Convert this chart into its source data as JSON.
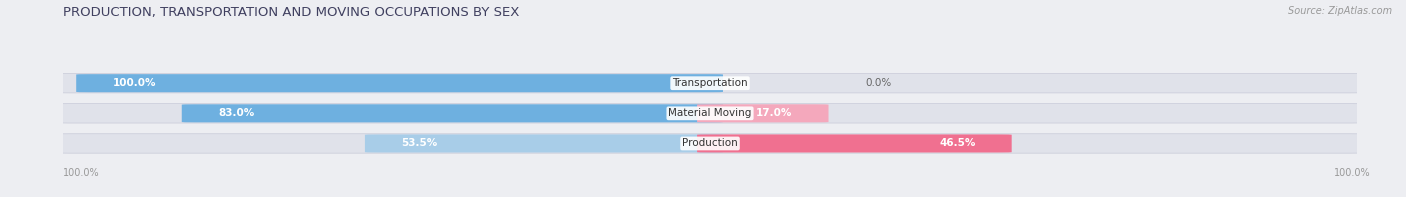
{
  "title": "PRODUCTION, TRANSPORTATION AND MOVING OCCUPATIONS BY SEX",
  "source": "Source: ZipAtlas.com",
  "categories": [
    "Transportation",
    "Material Moving",
    "Production"
  ],
  "male_values": [
    100.0,
    83.0,
    53.5
  ],
  "female_values": [
    0.0,
    17.0,
    46.5
  ],
  "male_color_strong": "#6EB0E0",
  "male_color_light": "#A8CDE8",
  "female_color_strong": "#F07090",
  "female_color_light": "#F4A8BC",
  "bg_color": "#EDEEF2",
  "bar_bg_color": "#E0E2EA",
  "title_color": "#404060",
  "source_color": "#999999",
  "label_color": "#555555",
  "pct_inside_color": "white",
  "pct_outside_color": "#666666",
  "title_fontsize": 9.5,
  "source_fontsize": 7,
  "label_fontsize": 7.5,
  "pct_fontsize": 7.5,
  "axis_label_fontsize": 7,
  "legend_fontsize": 7.5
}
